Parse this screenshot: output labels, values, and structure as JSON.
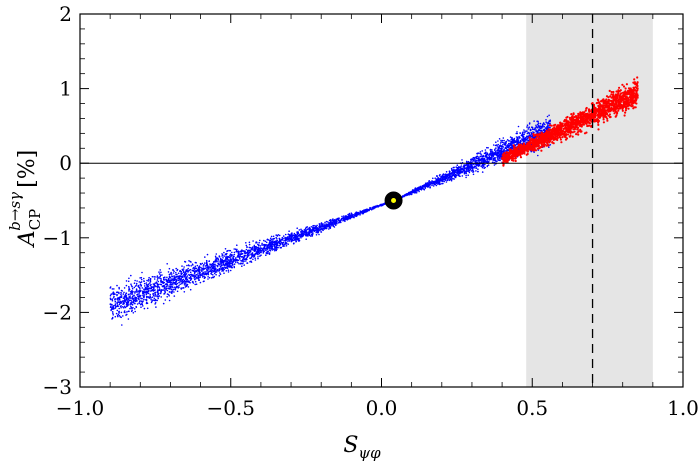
{
  "chart_data": {
    "type": "scatter",
    "xlabel_main": "S",
    "xlabel_sub": "ψφ",
    "ylabel_main": "A",
    "ylabel_sub": "CP",
    "ylabel_sup": "b→sγ",
    "ylabel_unit": "[%]",
    "xlim": [
      -1.0,
      1.0
    ],
    "ylim": [
      -3,
      2
    ],
    "xticks": [
      -1.0,
      -0.5,
      0.0,
      0.5,
      1.0
    ],
    "xtick_labels": [
      "−1.0",
      "−0.5",
      "0.0",
      "0.5",
      "1.0"
    ],
    "yticks": [
      -3,
      -2,
      -1,
      0,
      1,
      2
    ],
    "ytick_labels": [
      "−3",
      "−2",
      "−1",
      "0",
      "1",
      "2"
    ],
    "grid": false,
    "reference_lines": {
      "horizontal_y": 0,
      "vertical_dashed_x": 0.7
    },
    "shaded_band": {
      "x_from": 0.48,
      "x_to": 0.9,
      "color": "#e5e5e5"
    },
    "highlight_point": {
      "x": 0.04,
      "y": -0.5,
      "outer_color": "#000000",
      "inner_color": "#ffff00"
    },
    "series": [
      {
        "color": "#0000ff",
        "x_range": [
          -0.9,
          0.56
        ],
        "trend_at_x_min": -1.9,
        "trend_at_x_max": 0.45,
        "pivot": {
          "x": 0.04,
          "y": -0.5
        },
        "scatter_width_at_x_min": 0.45,
        "scatter_width_at_x_max": 0.4
      },
      {
        "color": "#ff0000",
        "x_range": [
          0.4,
          0.85
        ],
        "trend_at_x_min": 0.05,
        "trend_at_x_max": 0.95,
        "scatter_width": 0.35
      }
    ]
  }
}
